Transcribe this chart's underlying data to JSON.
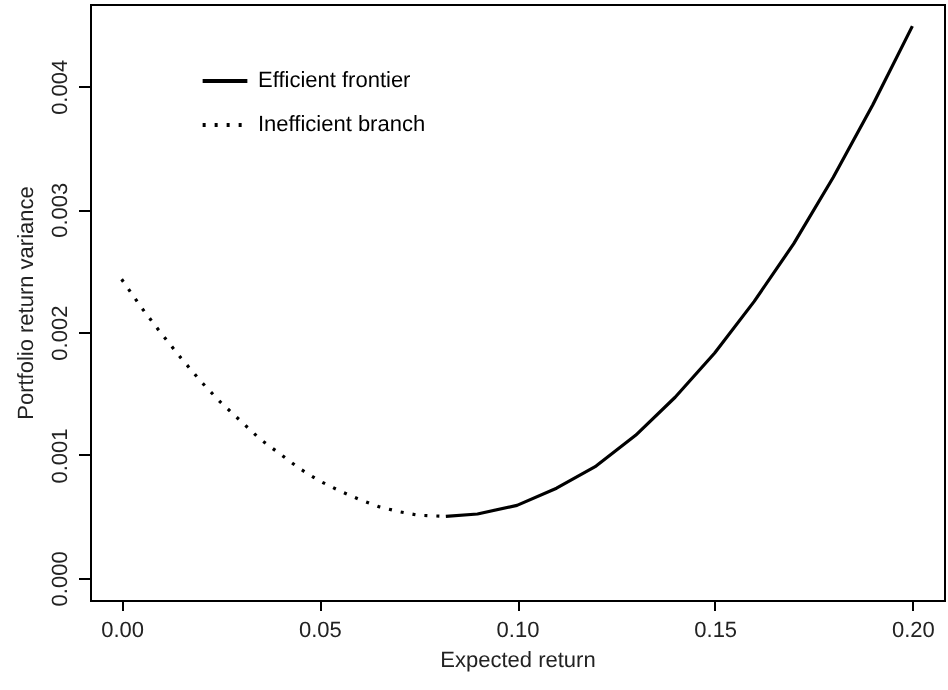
{
  "chart_data": {
    "type": "line",
    "xlabel": "Expected return",
    "ylabel": "Portfolio  return variance",
    "xlim": [
      -0.008,
      0.208
    ],
    "ylim": [
      -0.00018,
      0.00467
    ],
    "xticks": [
      {
        "value": 0,
        "label": "0.00"
      },
      {
        "value": 0.05,
        "label": "0.05"
      },
      {
        "value": 0.1,
        "label": "0.10"
      },
      {
        "value": 0.15,
        "label": "0.15"
      },
      {
        "value": 0.2,
        "label": "0.20"
      }
    ],
    "yticks": [
      {
        "value": 0,
        "label": "0.000"
      },
      {
        "value": 0.001,
        "label": "0.001"
      },
      {
        "value": 0.002,
        "label": "0.002"
      },
      {
        "value": 0.003,
        "label": "0.003"
      },
      {
        "value": 0.004,
        "label": "0.004"
      }
    ],
    "grid": false,
    "legend": "top left",
    "marker": "none",
    "series": [
      {
        "name": "Efficient frontier",
        "color": "#000000",
        "line_style": "solid",
        "x": [
          0.082,
          0.09,
          0.1,
          0.11,
          0.12,
          0.13,
          0.14,
          0.15,
          0.16,
          0.17,
          0.18,
          0.19,
          0.2
        ],
        "values": [
          0.0005,
          0.00052,
          0.00059,
          0.00073,
          0.00091,
          0.00116,
          0.00147,
          0.00183,
          0.00225,
          0.00272,
          0.00326,
          0.00385,
          0.00449
        ]
      },
      {
        "name": "Inefficient branch",
        "color": "#000000",
        "line_style": "dotted",
        "x": [
          0,
          0.005,
          0.01,
          0.015,
          0.02,
          0.025,
          0.03,
          0.035,
          0.04,
          0.045,
          0.05,
          0.055,
          0.06,
          0.065,
          0.07,
          0.075,
          0.082
        ],
        "values": [
          0.00243,
          0.0022,
          0.00199,
          0.00179,
          0.0016,
          0.00143,
          0.00128,
          0.00113,
          0.00101,
          0.00089,
          0.00079,
          0.00071,
          0.00064,
          0.00058,
          0.00054,
          0.00051,
          0.0005
        ]
      }
    ]
  }
}
